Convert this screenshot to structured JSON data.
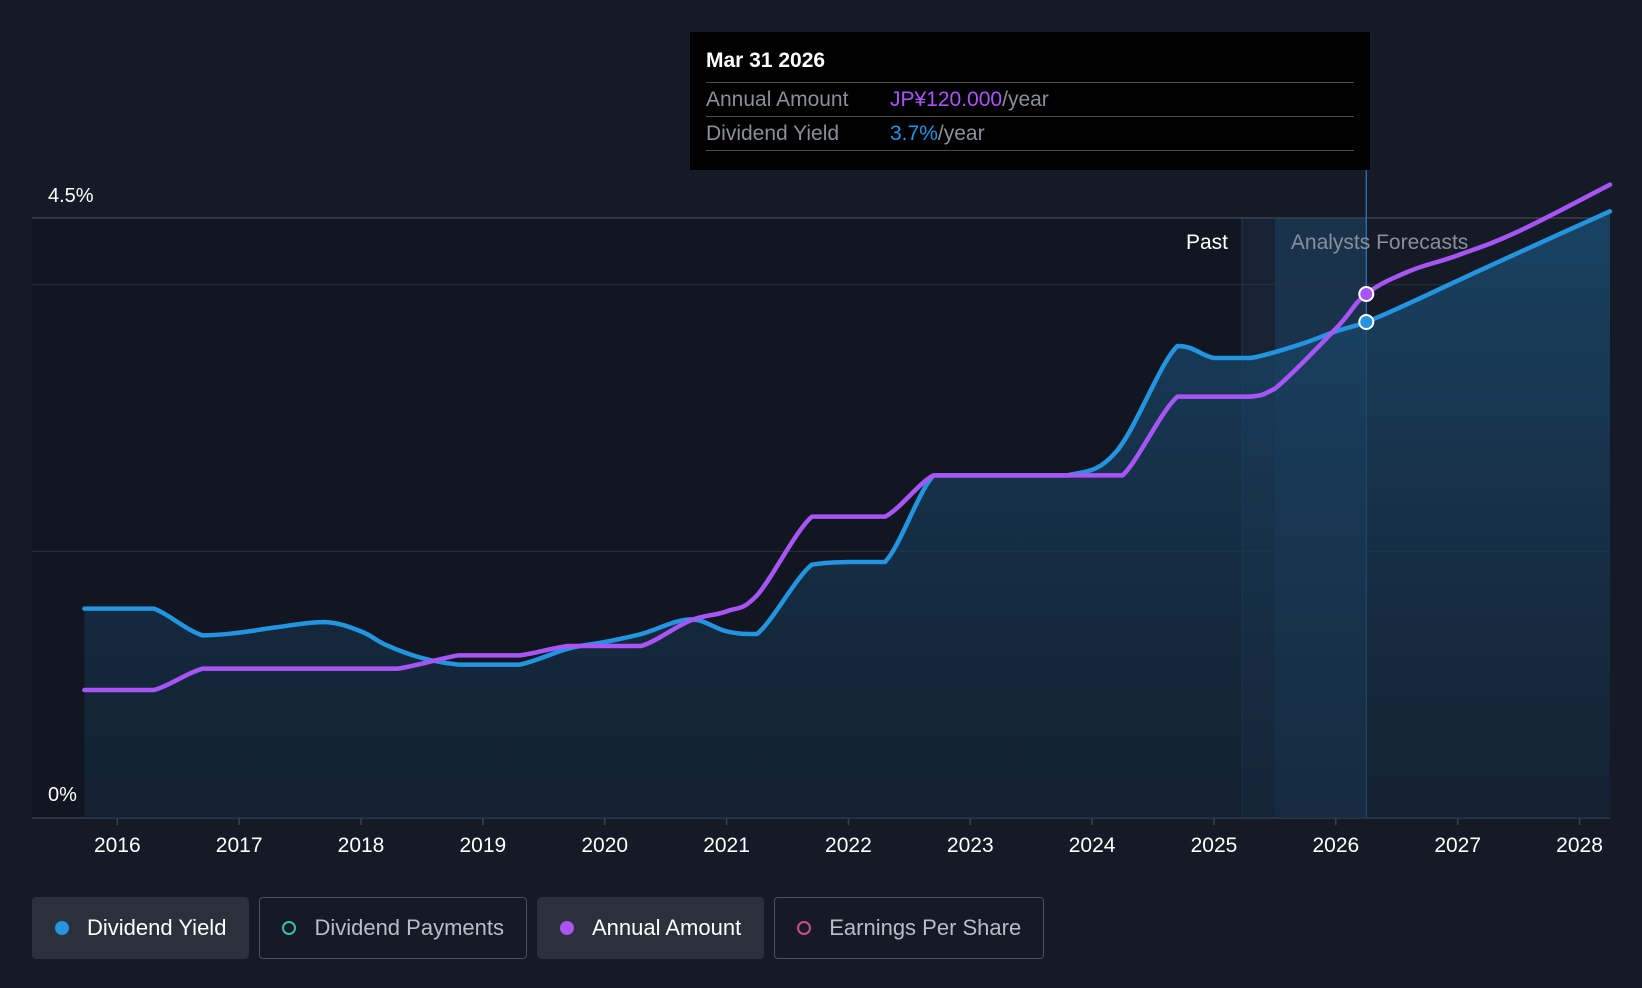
{
  "chart_data": {
    "type": "line",
    "x_ticks": [
      "2016",
      "2017",
      "2018",
      "2019",
      "2020",
      "2021",
      "2022",
      "2023",
      "2024",
      "2025",
      "2026",
      "2027",
      "2028"
    ],
    "y_label_top": "4.5%",
    "y_label_bottom": "0%",
    "ylim": [
      0,
      4.5
    ],
    "xlim": [
      2015.3,
      2028.25
    ],
    "grid": "horizontal",
    "past_label": "Past",
    "forecast_label": "Analysts Forecasts",
    "past_end": 2025.23,
    "forecast_start": 2025.5,
    "hover_x": 2026.25,
    "series": [
      {
        "name": "Dividend Yield",
        "color": "#2394df",
        "points": [
          [
            2015.73,
            1.57
          ],
          [
            2016.05,
            1.57
          ],
          [
            2016.3,
            1.57
          ],
          [
            2016.7,
            1.37
          ],
          [
            2017.0,
            1.39
          ],
          [
            2017.3,
            1.43
          ],
          [
            2017.7,
            1.47
          ],
          [
            2018.0,
            1.4
          ],
          [
            2018.2,
            1.3
          ],
          [
            2018.5,
            1.2
          ],
          [
            2018.8,
            1.15
          ],
          [
            2019.0,
            1.15
          ],
          [
            2019.3,
            1.15
          ],
          [
            2019.7,
            1.27
          ],
          [
            2020.0,
            1.32
          ],
          [
            2020.3,
            1.38
          ],
          [
            2020.7,
            1.49
          ],
          [
            2021.0,
            1.4
          ],
          [
            2021.25,
            1.38
          ],
          [
            2021.7,
            1.9
          ],
          [
            2022.0,
            1.92
          ],
          [
            2022.3,
            1.92
          ],
          [
            2022.7,
            2.57
          ],
          [
            2023.0,
            2.57
          ],
          [
            2023.5,
            2.57
          ],
          [
            2023.8,
            2.57
          ],
          [
            2024.2,
            2.75
          ],
          [
            2024.7,
            3.54
          ],
          [
            2025.0,
            3.45
          ],
          [
            2025.3,
            3.45
          ],
          [
            2025.7,
            3.55
          ],
          [
            2026.0,
            3.65
          ],
          [
            2026.25,
            3.72
          ],
          [
            2026.6,
            3.86
          ],
          [
            2027.0,
            4.03
          ],
          [
            2027.5,
            4.24
          ],
          [
            2028.25,
            4.55
          ]
        ],
        "forecast_from": 2025.5
      },
      {
        "name": "Annual Amount",
        "color": "#a855f7",
        "points": [
          [
            2015.73,
            0.96
          ],
          [
            2016.0,
            0.96
          ],
          [
            2016.3,
            0.96
          ],
          [
            2016.7,
            1.12
          ],
          [
            2017.0,
            1.12
          ],
          [
            2017.5,
            1.12
          ],
          [
            2018.0,
            1.12
          ],
          [
            2018.3,
            1.12
          ],
          [
            2018.8,
            1.22
          ],
          [
            2019.0,
            1.22
          ],
          [
            2019.3,
            1.22
          ],
          [
            2019.7,
            1.29
          ],
          [
            2020.0,
            1.29
          ],
          [
            2020.3,
            1.29
          ],
          [
            2020.7,
            1.48
          ],
          [
            2021.0,
            1.55
          ],
          [
            2021.25,
            1.67
          ],
          [
            2021.7,
            2.26
          ],
          [
            2022.0,
            2.26
          ],
          [
            2022.3,
            2.26
          ],
          [
            2022.7,
            2.57
          ],
          [
            2023.0,
            2.57
          ],
          [
            2023.5,
            2.57
          ],
          [
            2024.0,
            2.57
          ],
          [
            2024.25,
            2.57
          ],
          [
            2024.7,
            3.16
          ],
          [
            2025.0,
            3.16
          ],
          [
            2025.3,
            3.16
          ],
          [
            2025.5,
            3.22
          ],
          [
            2026.0,
            3.67
          ],
          [
            2026.25,
            3.93
          ],
          [
            2026.6,
            4.1
          ],
          [
            2027.0,
            4.22
          ],
          [
            2027.5,
            4.4
          ],
          [
            2028.25,
            4.75
          ]
        ],
        "forecast_from": 2025.5
      }
    ],
    "area_series": "Dividend Yield",
    "hover_markers": [
      {
        "series": "Annual Amount",
        "x": 2026.25,
        "y": 3.93
      },
      {
        "series": "Dividend Yield",
        "x": 2026.25,
        "y": 3.72
      }
    ]
  },
  "tooltip": {
    "date": "Mar 31 2026",
    "annual_label": "Annual Amount",
    "annual_value": "JP¥120.000",
    "annual_unit": "/year",
    "yield_label": "Dividend Yield",
    "yield_value": "3.7%",
    "yield_unit": "/year"
  },
  "legend": [
    {
      "label": "Dividend Yield",
      "color": "#2394df",
      "active": true,
      "filled": true
    },
    {
      "label": "Dividend Payments",
      "color": "#3fb8af",
      "active": false,
      "filled": false
    },
    {
      "label": "Annual Amount",
      "color": "#a855f7",
      "active": true,
      "filled": true
    },
    {
      "label": "Earnings Per Share",
      "color": "#d44a86",
      "active": false,
      "filled": false
    }
  ]
}
